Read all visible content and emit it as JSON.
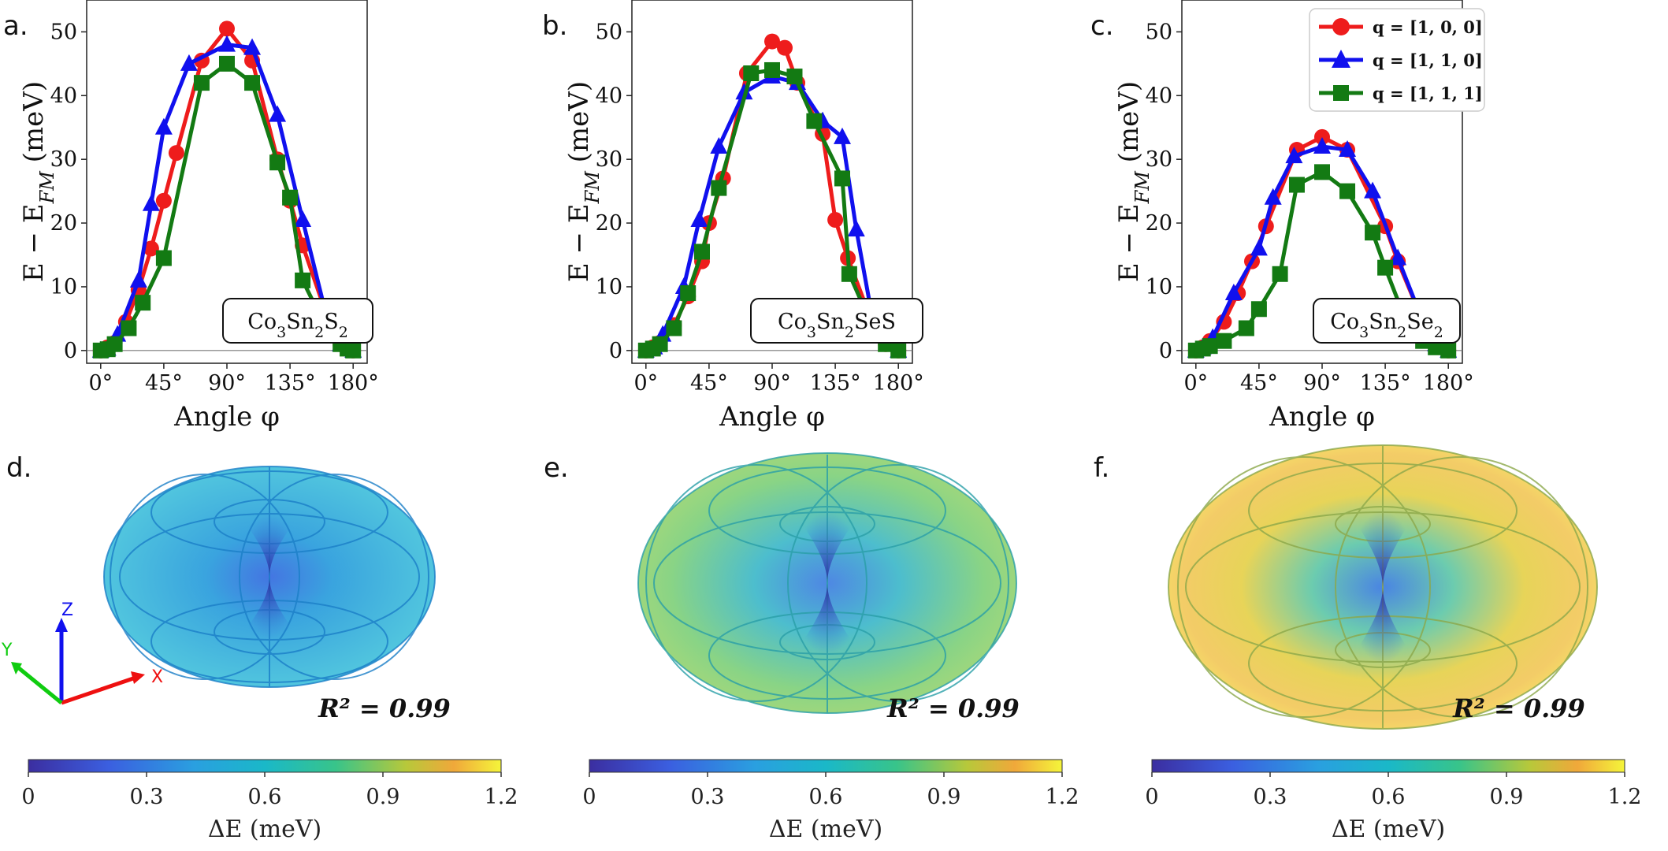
{
  "chart_data": [
    {
      "type": "line",
      "panel": "a.",
      "material": {
        "base": "Co",
        "parts": [
          [
            "Co",
            "3"
          ],
          [
            "Sn",
            "2"
          ],
          [
            "S",
            "2"
          ]
        ]
      },
      "xlabel": "Angle φ",
      "ylabel": "E − E_FM (meV)",
      "xlim": [
        -10,
        190
      ],
      "ylim": [
        -2,
        55
      ],
      "xticks": [
        "0°",
        "45°",
        "90°",
        "135°",
        "180°"
      ],
      "yticks": [
        "0",
        "10",
        "20",
        "30",
        "40",
        "50"
      ],
      "series": [
        {
          "name": "q = [1, 0, 0]",
          "color": "#ee1c1c",
          "marker": "circle",
          "x": [
            0,
            5,
            10,
            18,
            27,
            36,
            45,
            54,
            72,
            90,
            108,
            126,
            135,
            144,
            162,
            171,
            176,
            180
          ],
          "y": [
            0,
            0.5,
            1.2,
            4.5,
            9.5,
            16,
            23.5,
            31,
            45.5,
            50.5,
            45.5,
            30,
            23.5,
            16.5,
            5,
            1,
            0.3,
            0
          ]
        },
        {
          "name": "q = [1, 1, 0]",
          "color": "#1010ee",
          "marker": "triangle",
          "x": [
            0,
            5,
            12,
            27,
            36,
            45,
            63,
            90,
            108,
            126,
            144,
            162,
            171,
            180
          ],
          "y": [
            0,
            0.3,
            2.5,
            11,
            23,
            35,
            45,
            48,
            47.5,
            37,
            20.5,
            4.5,
            1,
            0
          ]
        },
        {
          "name": "q = [1, 1, 1]",
          "color": "#137a13",
          "marker": "square",
          "x": [
            0,
            5,
            10,
            20,
            30,
            45,
            72,
            90,
            108,
            126,
            135,
            144,
            162,
            171,
            176,
            180
          ],
          "y": [
            0,
            0.2,
            1,
            3.5,
            7.5,
            14.5,
            42,
            45,
            42,
            29.5,
            24,
            11,
            3,
            1,
            0.3,
            0
          ]
        }
      ]
    },
    {
      "type": "line",
      "panel": "b.",
      "material": {
        "base": "Co",
        "parts": [
          [
            "Co",
            "3"
          ],
          [
            "Sn",
            "2"
          ],
          [
            "SeS",
            ""
          ]
        ]
      },
      "xlabel": "Angle φ",
      "ylabel": "E − E_FM (meV)",
      "xlim": [
        -10,
        190
      ],
      "ylim": [
        -2,
        55
      ],
      "xticks": [
        "0°",
        "45°",
        "90°",
        "135°",
        "180°"
      ],
      "yticks": [
        "0",
        "10",
        "20",
        "30",
        "40",
        "50"
      ],
      "series": [
        {
          "name": "q = [1, 0, 0]",
          "color": "#ee1c1c",
          "marker": "circle",
          "x": [
            0,
            5,
            10,
            20,
            30,
            40,
            45,
            55,
            72,
            90,
            99,
            108,
            126,
            135,
            144,
            162,
            171,
            180
          ],
          "y": [
            0,
            0.5,
            1.2,
            4,
            8.5,
            14,
            20,
            27,
            43.5,
            48.5,
            47.5,
            42,
            34,
            20.5,
            14.5,
            4,
            1,
            0
          ]
        },
        {
          "name": "q = [1, 1, 0]",
          "color": "#1010ee",
          "marker": "triangle",
          "x": [
            0,
            6,
            12,
            27,
            38,
            52,
            70,
            90,
            108,
            126,
            140,
            150,
            162,
            180
          ],
          "y": [
            0,
            0.5,
            2.5,
            10,
            20.5,
            32,
            40.5,
            43,
            42,
            36,
            33.5,
            19,
            4.5,
            0
          ]
        },
        {
          "name": "q = [1, 1, 1]",
          "color": "#137a13",
          "marker": "square",
          "x": [
            0,
            5,
            10,
            20,
            30,
            40,
            52,
            75,
            90,
            106,
            120,
            140,
            145,
            162,
            171,
            180
          ],
          "y": [
            0,
            0.3,
            1,
            3.5,
            9,
            15.5,
            25.5,
            43.5,
            44,
            43,
            36,
            27,
            12,
            3.5,
            1,
            0
          ]
        }
      ]
    },
    {
      "type": "line",
      "panel": "c.",
      "material": {
        "base": "Co",
        "parts": [
          [
            "Co",
            "3"
          ],
          [
            "Sn",
            "2"
          ],
          [
            "Se",
            "2"
          ]
        ]
      },
      "xlabel": "Angle φ",
      "ylabel": "E − E_FM (meV)",
      "xlim": [
        -10,
        190
      ],
      "ylim": [
        -2,
        55
      ],
      "xticks": [
        "0°",
        "45°",
        "90°",
        "135°",
        "180°"
      ],
      "yticks": [
        "0",
        "10",
        "20",
        "30",
        "40",
        "50"
      ],
      "series": [
        {
          "name": "q = [1, 0, 0]",
          "color": "#ee1c1c",
          "marker": "circle",
          "x": [
            0,
            5,
            10,
            20,
            30,
            40,
            50,
            72,
            90,
            108,
            135,
            144,
            162,
            171,
            180
          ],
          "y": [
            0,
            0.5,
            1.5,
            4.5,
            9,
            14,
            19.5,
            31.5,
            33.5,
            31.5,
            19.5,
            14,
            4.5,
            1.5,
            0
          ]
        },
        {
          "name": "q = [1, 1, 0]",
          "color": "#1010ee",
          "marker": "triangle",
          "x": [
            0,
            5,
            12,
            27,
            45,
            55,
            70,
            90,
            108,
            126,
            144,
            162,
            171,
            180
          ],
          "y": [
            0,
            0.5,
            2,
            9,
            16,
            24,
            30.5,
            32,
            31.5,
            25,
            14.5,
            4.5,
            1,
            0
          ]
        },
        {
          "name": "q = [1, 1, 1]",
          "color": "#137a13",
          "marker": "square",
          "x": [
            0,
            5,
            10,
            20,
            36,
            45,
            60,
            72,
            90,
            108,
            126,
            135,
            150,
            162,
            171,
            180
          ],
          "y": [
            0,
            0.3,
            0.7,
            1.5,
            3.5,
            6.5,
            12,
            26,
            28,
            25,
            18.5,
            13,
            4.5,
            1.5,
            0.5,
            0
          ]
        }
      ]
    }
  ],
  "legend": {
    "entries": [
      "q = [1, 0, 0]",
      "q = [1, 1, 0]",
      "q = [1, 1, 1]"
    ],
    "placement": "top-right of panel c"
  },
  "bottom_panels": [
    {
      "label": "d.",
      "r2_text": "R² = 0.99",
      "shape": "anisotropy-energy-surface",
      "colormap_level": 0.38
    },
    {
      "label": "e.",
      "r2_text": "R² = 0.99",
      "shape": "anisotropy-energy-surface",
      "colormap_level": 0.62
    },
    {
      "label": "f.",
      "r2_text": "R² = 0.99",
      "shape": "anisotropy-energy-surface",
      "colormap_level": 0.86
    }
  ],
  "axes_triad": {
    "x": "X",
    "y": "Y",
    "z": "Z"
  },
  "colorbar": {
    "ticks": [
      "0",
      "0.3",
      "0.6",
      "0.9",
      "1.2"
    ],
    "label": "ΔE (meV)",
    "colors": [
      "#3b2ea0",
      "#3b6fe0",
      "#1ab2d0",
      "#36c58a",
      "#a0cc3a",
      "#f0a33a",
      "#f5f53a"
    ]
  }
}
